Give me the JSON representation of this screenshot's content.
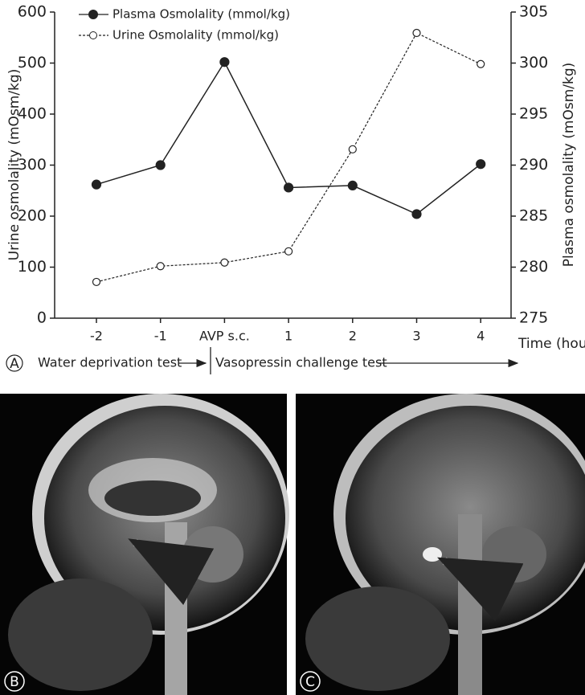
{
  "chart_data": {
    "type": "line",
    "y_label": "Urine osmolality (mOsm/kg)",
    "y2_label": "Plasma osmolality (mOsm/kg)",
    "x_label": "Time (hours)",
    "categories": [
      "-2",
      "-1",
      "AVP s.c.",
      "1",
      "2",
      "3",
      "4"
    ],
    "series": [
      {
        "name": "Plasma Osmolality (mmol/kg)",
        "color": "#222222",
        "axis": "y2",
        "marker": "filled",
        "dashed": false,
        "values": [
          288.1,
          290,
          300.1,
          287.8,
          288,
          285.2,
          290.1
        ]
      },
      {
        "name": "Urine Osmolality (mmol/kg)",
        "color": "#222222",
        "axis": "y",
        "marker": "open",
        "dashed": true,
        "values": [
          71,
          102,
          109,
          131,
          331,
          559,
          498
        ]
      }
    ],
    "ylim": [
      0,
      600
    ],
    "yticks": [
      0,
      100,
      200,
      300,
      400,
      500,
      600
    ],
    "y2lim": [
      275,
      305
    ],
    "y2ticks": [
      275,
      280,
      285,
      290,
      295,
      300,
      305
    ],
    "grid": false,
    "legend": "top-left",
    "annotations": {
      "panel_a": "A",
      "water_test": "Water deprivation test",
      "vaso_test": "Vasopressin challenge test",
      "panel_b": "B",
      "panel_c": "C"
    }
  }
}
